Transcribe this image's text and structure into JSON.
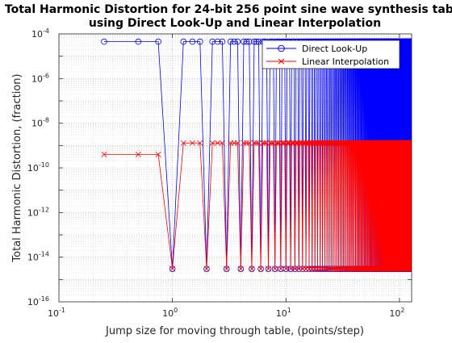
{
  "chart_data": {
    "type": "line",
    "title": "Total Harmonic Distortion for 24-bit 256 point sine wave synthesis table",
    "subtitle": "using Direct Look-Up and Linear Interpolation",
    "xlabel": "Jump size for moving through table, (points/step)",
    "ylabel": "Total Harmonic Distortion, (fraction)",
    "x_scale": "log",
    "y_scale": "log",
    "xlim": [
      0.1,
      128
    ],
    "ylim": [
      1e-16,
      0.0001
    ],
    "x_ticks": [
      {
        "value": 0.1,
        "base": "10",
        "exp": "-1"
      },
      {
        "value": 1,
        "base": "10",
        "exp": "0"
      },
      {
        "value": 10,
        "base": "10",
        "exp": "1"
      },
      {
        "value": 100,
        "base": "10",
        "exp": "2"
      }
    ],
    "y_ticks": [
      {
        "value": 1e-16,
        "base": "10",
        "exp": "-16"
      },
      {
        "value": 1e-14,
        "base": "10",
        "exp": "-14"
      },
      {
        "value": 1e-12,
        "base": "10",
        "exp": "-12"
      },
      {
        "value": 1e-10,
        "base": "10",
        "exp": "-10"
      },
      {
        "value": 1e-08,
        "base": "10",
        "exp": "-8"
      },
      {
        "value": 1e-06,
        "base": "10",
        "exp": "-6"
      },
      {
        "value": 0.0001,
        "base": "10",
        "exp": "-4"
      }
    ],
    "grid": true,
    "minor_grid": true,
    "legend_position": "top-right",
    "x_step": 0.25,
    "x_max": 128,
    "series": [
      {
        "name": "Direct Look-Up",
        "color": "#0000ff",
        "marker": "circle",
        "integer_value": 3e-15,
        "noninteger_value": 4.5e-05
      },
      {
        "name": "Linear Interpolation",
        "color": "#ff0000",
        "marker": "x",
        "integer_value": 3e-15,
        "noninteger_value": 1.3e-09,
        "noninteger_start_value": 4e-10
      }
    ]
  }
}
